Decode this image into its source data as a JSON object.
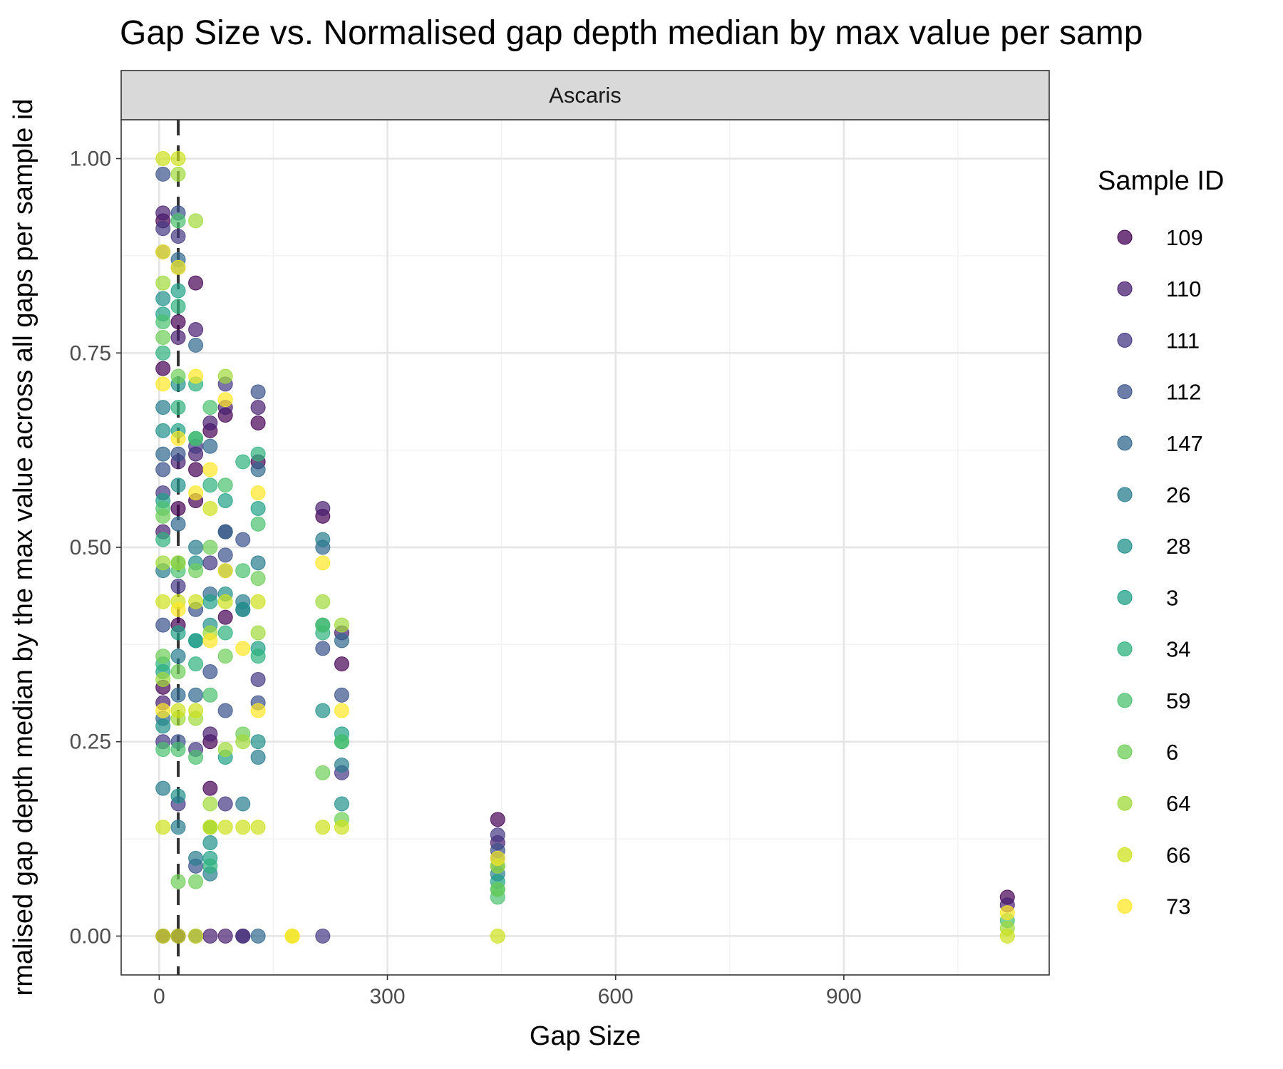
{
  "colors": {
    "panel_border": "#333333",
    "strip_fill": "#d9d9d9",
    "grid_major": "#e5e5e5",
    "grid_minor": "#f2f2f2",
    "vline": "#333333"
  },
  "chart_data": {
    "type": "scatter",
    "title": "Gap Size vs. Normalised gap depth median by max value per samp",
    "xlabel": "Gap Size",
    "ylabel": "rmalised gap depth median by the max value across all gaps per sample id",
    "facet": "Ascaris",
    "xlim": [
      -50,
      1170
    ],
    "ylim": [
      -0.05,
      1.05
    ],
    "xticks": [
      0,
      300,
      600,
      900
    ],
    "xtick_labels": [
      "0",
      "300",
      "600",
      "900"
    ],
    "yticks": [
      0,
      0.25,
      0.5,
      0.75,
      1
    ],
    "ytick_labels": [
      "0.00",
      "0.25",
      "0.50",
      "0.75",
      "1.00"
    ],
    "vline_x": 25,
    "vline_style": "dashed",
    "grid": true,
    "legend_title": "Sample ID",
    "legend_position": "right",
    "series": [
      {
        "name": "109",
        "color": "#440154",
        "points": [
          [
            5,
            0.92
          ],
          [
            5,
            0.73
          ],
          [
            5,
            0.32
          ],
          [
            5,
            0
          ],
          [
            25,
            0.79
          ],
          [
            25,
            0.55
          ],
          [
            25,
            0.4
          ],
          [
            25,
            0
          ],
          [
            48,
            0.84
          ],
          [
            48,
            0.6
          ],
          [
            48,
            0.56
          ],
          [
            67,
            0.65
          ],
          [
            67,
            0.25
          ],
          [
            67,
            0.19
          ],
          [
            87,
            0.67
          ],
          [
            87,
            0.41
          ],
          [
            110,
            0
          ],
          [
            130,
            0.66
          ],
          [
            130,
            0.61
          ],
          [
            215,
            0.54
          ],
          [
            240,
            0.35
          ],
          [
            445,
            0.15
          ],
          [
            1115,
            0.05
          ]
        ]
      },
      {
        "name": "110",
        "color": "#481f70",
        "points": [
          [
            5,
            0.93
          ],
          [
            5,
            0.52
          ],
          [
            5,
            0.3
          ],
          [
            25,
            0.77
          ],
          [
            25,
            0.61
          ],
          [
            25,
            0
          ],
          [
            48,
            0.78
          ],
          [
            48,
            0.62
          ],
          [
            67,
            0.66
          ],
          [
            67,
            0.26
          ],
          [
            67,
            0
          ],
          [
            87,
            0.68
          ],
          [
            87,
            0.52
          ],
          [
            87,
            0
          ],
          [
            130,
            0.68
          ],
          [
            215,
            0.55
          ],
          [
            240,
            0.39
          ],
          [
            445,
            0.12
          ],
          [
            1115,
            0.04
          ]
        ]
      },
      {
        "name": "111",
        "color": "#443983",
        "points": [
          [
            5,
            0.91
          ],
          [
            5,
            0.57
          ],
          [
            5,
            0.25
          ],
          [
            25,
            0.9
          ],
          [
            25,
            0.45
          ],
          [
            25,
            0.17
          ],
          [
            48,
            0.63
          ],
          [
            48,
            0.24
          ],
          [
            48,
            0
          ],
          [
            67,
            0.48
          ],
          [
            87,
            0.71
          ],
          [
            87,
            0.17
          ],
          [
            110,
            0
          ],
          [
            130,
            0.33
          ],
          [
            215,
            0
          ],
          [
            240,
            0.21
          ],
          [
            445,
            0.13
          ]
        ]
      },
      {
        "name": "112",
        "color": "#3b528b",
        "points": [
          [
            5,
            0.98
          ],
          [
            5,
            0.6
          ],
          [
            5,
            0.4
          ],
          [
            25,
            0.93
          ],
          [
            25,
            0.62
          ],
          [
            25,
            0.25
          ],
          [
            48,
            0.42
          ],
          [
            48,
            0.09
          ],
          [
            67,
            0.34
          ],
          [
            87,
            0.49
          ],
          [
            87,
            0.29
          ],
          [
            110,
            0.51
          ],
          [
            130,
            0.7
          ],
          [
            130,
            0.3
          ],
          [
            215,
            0.37
          ],
          [
            240,
            0.31
          ],
          [
            445,
            0.11
          ]
        ]
      },
      {
        "name": "147",
        "color": "#31688e",
        "points": [
          [
            5,
            0.88
          ],
          [
            5,
            0.62
          ],
          [
            5,
            0.28
          ],
          [
            25,
            0.87
          ],
          [
            25,
            0.53
          ],
          [
            25,
            0.31
          ],
          [
            48,
            0.76
          ],
          [
            48,
            0.31
          ],
          [
            67,
            0.63
          ],
          [
            67,
            0.44
          ],
          [
            87,
            0.52
          ],
          [
            110,
            0.42
          ],
          [
            130,
            0.6
          ],
          [
            130,
            0
          ],
          [
            215,
            0.5
          ],
          [
            240,
            0.38
          ],
          [
            445,
            0.1
          ]
        ]
      },
      {
        "name": "26",
        "color": "#287c8e",
        "points": [
          [
            5,
            0.68
          ],
          [
            5,
            0.47
          ],
          [
            5,
            0.19
          ],
          [
            25,
            0.86
          ],
          [
            25,
            0.36
          ],
          [
            25,
            0.14
          ],
          [
            48,
            0.5
          ],
          [
            48,
            0.1
          ],
          [
            67,
            0.08
          ],
          [
            87,
            0.47
          ],
          [
            110,
            0.43
          ],
          [
            110,
            0.17
          ],
          [
            130,
            0.48
          ],
          [
            130,
            0.23
          ],
          [
            215,
            0.51
          ],
          [
            240,
            0.22
          ],
          [
            445,
            0.08
          ]
        ]
      },
      {
        "name": "28",
        "color": "#21918c",
        "points": [
          [
            5,
            0.82
          ],
          [
            5,
            0.65
          ],
          [
            5,
            0.27
          ],
          [
            25,
            0.71
          ],
          [
            25,
            0.58
          ],
          [
            25,
            0.18
          ],
          [
            48,
            0.48
          ],
          [
            48,
            0.38
          ],
          [
            67,
            0.4
          ],
          [
            67,
            0.12
          ],
          [
            87,
            0.44
          ],
          [
            110,
            0.42
          ],
          [
            130,
            0.25
          ],
          [
            215,
            0.29
          ],
          [
            240,
            0.17
          ],
          [
            445,
            0.09
          ]
        ]
      },
      {
        "name": "3",
        "color": "#1fa187",
        "points": [
          [
            5,
            0.8
          ],
          [
            5,
            0.56
          ],
          [
            5,
            0.34
          ],
          [
            25,
            0.83
          ],
          [
            25,
            0.65
          ],
          [
            25,
            0.39
          ],
          [
            48,
            0.64
          ],
          [
            48,
            0.38
          ],
          [
            67,
            0.43
          ],
          [
            67,
            0.1
          ],
          [
            87,
            0.56
          ],
          [
            87,
            0.23
          ],
          [
            130,
            0.55
          ],
          [
            130,
            0.37
          ],
          [
            215,
            0.4
          ],
          [
            240,
            0.26
          ],
          [
            445,
            0.07
          ]
        ]
      },
      {
        "name": "34",
        "color": "#2db27d",
        "points": [
          [
            5,
            0.75
          ],
          [
            5,
            0.51
          ],
          [
            5,
            0.35
          ],
          [
            25,
            0.81
          ],
          [
            25,
            0.68
          ],
          [
            25,
            0.48
          ],
          [
            48,
            0.71
          ],
          [
            48,
            0.35
          ],
          [
            67,
            0.58
          ],
          [
            67,
            0.09
          ],
          [
            87,
            0.39
          ],
          [
            110,
            0.61
          ],
          [
            130,
            0.62
          ],
          [
            130,
            0.36
          ],
          [
            215,
            0.39
          ],
          [
            240,
            0.25
          ],
          [
            445,
            0.06
          ]
        ]
      },
      {
        "name": "59",
        "color": "#4ac16d",
        "points": [
          [
            5,
            0.79
          ],
          [
            5,
            0.55
          ],
          [
            5,
            0.24
          ],
          [
            25,
            0.92
          ],
          [
            25,
            0.47
          ],
          [
            25,
            0.24
          ],
          [
            48,
            0.64
          ],
          [
            48,
            0.23
          ],
          [
            67,
            0.68
          ],
          [
            67,
            0.31
          ],
          [
            67,
            0.14
          ],
          [
            87,
            0.58
          ],
          [
            110,
            0.47
          ],
          [
            130,
            0.53
          ],
          [
            215,
            0.4
          ],
          [
            240,
            0.25
          ],
          [
            445,
            0.05
          ],
          [
            1115,
            0.02
          ]
        ]
      },
      {
        "name": "6",
        "color": "#6ece58",
        "points": [
          [
            5,
            0.77
          ],
          [
            5,
            0.54
          ],
          [
            5,
            0.36
          ],
          [
            25,
            0.72
          ],
          [
            25,
            0.34
          ],
          [
            25,
            0.07
          ],
          [
            48,
            0.47
          ],
          [
            48,
            0.07
          ],
          [
            67,
            0.5
          ],
          [
            67,
            0.14
          ],
          [
            87,
            0.36
          ],
          [
            110,
            0.26
          ],
          [
            130,
            0.46
          ],
          [
            215,
            0.21
          ],
          [
            240,
            0.15
          ],
          [
            445,
            0.06
          ]
        ]
      },
      {
        "name": "64",
        "color": "#9fda3a",
        "points": [
          [
            5,
            0.84
          ],
          [
            5,
            0.48
          ],
          [
            5,
            0.33
          ],
          [
            25,
            0.98
          ],
          [
            25,
            0.48
          ],
          [
            25,
            0.28
          ],
          [
            48,
            0.92
          ],
          [
            48,
            0.28
          ],
          [
            67,
            0.39
          ],
          [
            67,
            0.17
          ],
          [
            87,
            0.72
          ],
          [
            87,
            0.24
          ],
          [
            110,
            0.25
          ],
          [
            130,
            0.39
          ],
          [
            215,
            0.43
          ],
          [
            240,
            0.4
          ],
          [
            445,
            0.09
          ],
          [
            1115,
            0.01
          ]
        ]
      },
      {
        "name": "66",
        "color": "#cde11d",
        "points": [
          [
            5,
            1
          ],
          [
            5,
            0.43
          ],
          [
            5,
            0.14
          ],
          [
            5,
            0
          ],
          [
            25,
            1
          ],
          [
            25,
            0.43
          ],
          [
            25,
            0.29
          ],
          [
            25,
            0
          ],
          [
            48,
            0.43
          ],
          [
            48,
            0.29
          ],
          [
            48,
            0
          ],
          [
            67,
            0.55
          ],
          [
            67,
            0.14
          ],
          [
            87,
            0.43
          ],
          [
            87,
            0.14
          ],
          [
            110,
            0.14
          ],
          [
            130,
            0.43
          ],
          [
            130,
            0.14
          ],
          [
            175,
            0
          ],
          [
            215,
            0.14
          ],
          [
            240,
            0.14
          ],
          [
            445,
            0
          ],
          [
            1115,
            0
          ]
        ]
      },
      {
        "name": "73",
        "color": "#fde725",
        "points": [
          [
            5,
            0.88
          ],
          [
            5,
            0.71
          ],
          [
            5,
            0.29
          ],
          [
            25,
            0.86
          ],
          [
            25,
            0.64
          ],
          [
            25,
            0.42
          ],
          [
            48,
            0.72
          ],
          [
            48,
            0.57
          ],
          [
            67,
            0.6
          ],
          [
            67,
            0.38
          ],
          [
            87,
            0.69
          ],
          [
            87,
            0.47
          ],
          [
            110,
            0.37
          ],
          [
            130,
            0.57
          ],
          [
            130,
            0.29
          ],
          [
            175,
            0
          ],
          [
            215,
            0.48
          ],
          [
            240,
            0.29
          ],
          [
            445,
            0.1
          ],
          [
            1115,
            0.03
          ]
        ]
      }
    ]
  }
}
